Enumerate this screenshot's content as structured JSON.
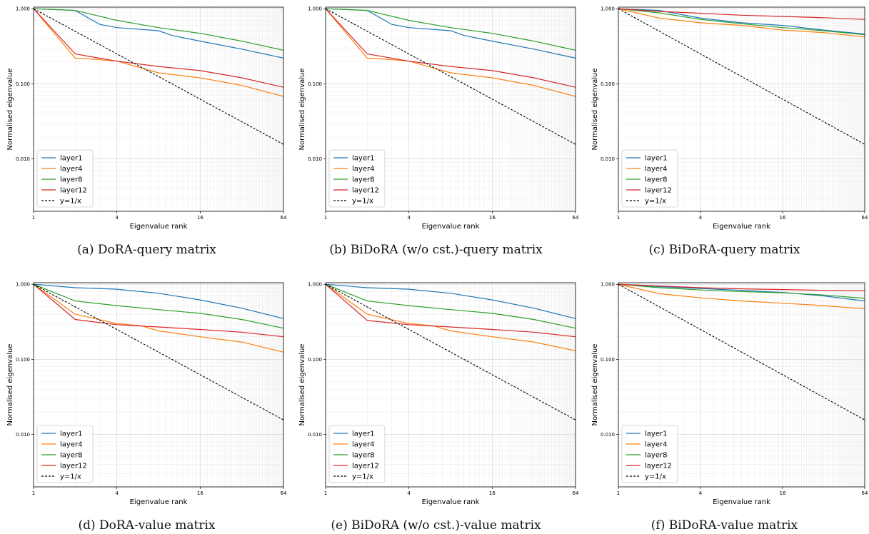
{
  "figure": {
    "captions": [
      "(a)  DoRA-query matrix",
      "(b)  BiDoRA (w/o cst.)-query matrix",
      "(c)  BiDoRA-query matrix",
      "(d)  DoRA-value matrix",
      "(e)  BiDoRA (w/o cst.)-value matrix",
      "(f)  BiDoRA-value matrix"
    ]
  },
  "series_colors": {
    "layer1": "#1f77b4",
    "layer4": "#ff7f0e",
    "layer8": "#2ca02c",
    "layer12": "#d62728",
    "reference": "#000000"
  },
  "chart_data": [
    {
      "type": "line",
      "title": "",
      "xlabel": "Eigenvalue rank",
      "ylabel": "Normalised eigenvalue",
      "xscale": "log2",
      "yscale": "log10",
      "xlim": [
        1,
        64
      ],
      "ylim": [
        0.002,
        1.05
      ],
      "xticks": [
        1,
        4,
        16,
        64
      ],
      "xtick_labels": [
        "1",
        "4",
        "16",
        "64"
      ],
      "yticks": [
        1,
        0.1,
        0.01
      ],
      "ytick_labels": [
        "1.000",
        "0.100",
        "0.010"
      ],
      "grid": true,
      "legend_position": "lower-left",
      "series": [
        {
          "name": "layer1",
          "x": [
            1,
            2,
            3,
            4,
            8,
            10,
            16,
            32,
            64
          ],
          "y": [
            1.0,
            0.95,
            0.62,
            0.56,
            0.51,
            0.44,
            0.37,
            0.29,
            0.22
          ]
        },
        {
          "name": "layer4",
          "x": [
            1,
            2,
            3,
            4,
            8,
            16,
            32,
            64
          ],
          "y": [
            1.0,
            0.22,
            0.21,
            0.2,
            0.14,
            0.12,
            0.095,
            0.068
          ]
        },
        {
          "name": "layer8",
          "x": [
            1,
            2,
            4,
            8,
            16,
            32,
            64
          ],
          "y": [
            1.0,
            0.95,
            0.7,
            0.56,
            0.47,
            0.37,
            0.28
          ]
        },
        {
          "name": "layer12",
          "x": [
            1,
            2,
            4,
            8,
            16,
            32,
            64
          ],
          "y": [
            1.0,
            0.25,
            0.2,
            0.17,
            0.15,
            0.12,
            0.09
          ]
        },
        {
          "name": "y=1/x",
          "x": [
            1,
            64
          ],
          "y": [
            1.0,
            0.0156
          ],
          "dashed": true
        }
      ]
    },
    {
      "type": "line",
      "title": "",
      "xlabel": "Eigenvalue rank",
      "ylabel": "Normalised eigenvalue",
      "xscale": "log2",
      "yscale": "log10",
      "xlim": [
        1,
        64
      ],
      "ylim": [
        0.002,
        1.05
      ],
      "xticks": [
        1,
        4,
        16,
        64
      ],
      "xtick_labels": [
        "1",
        "4",
        "16",
        "64"
      ],
      "yticks": [
        1,
        0.1,
        0.01
      ],
      "ytick_labels": [
        "1.000",
        "0.100",
        "0.010"
      ],
      "grid": true,
      "legend_position": "lower-left",
      "series": [
        {
          "name": "layer1",
          "x": [
            1,
            2,
            3,
            4,
            8,
            10,
            16,
            32,
            64
          ],
          "y": [
            1.0,
            0.95,
            0.62,
            0.56,
            0.51,
            0.44,
            0.37,
            0.29,
            0.22
          ]
        },
        {
          "name": "layer4",
          "x": [
            1,
            2,
            3,
            4,
            8,
            16,
            32,
            64
          ],
          "y": [
            1.0,
            0.22,
            0.21,
            0.2,
            0.14,
            0.12,
            0.095,
            0.068
          ]
        },
        {
          "name": "layer8",
          "x": [
            1,
            2,
            4,
            8,
            16,
            32,
            64
          ],
          "y": [
            1.0,
            0.95,
            0.7,
            0.56,
            0.47,
            0.37,
            0.28
          ]
        },
        {
          "name": "layer12",
          "x": [
            1,
            2,
            4,
            8,
            16,
            32,
            64
          ],
          "y": [
            1.0,
            0.25,
            0.2,
            0.17,
            0.15,
            0.12,
            0.09
          ]
        },
        {
          "name": "y=1/x",
          "x": [
            1,
            64
          ],
          "y": [
            1.0,
            0.0156
          ],
          "dashed": true
        }
      ]
    },
    {
      "type": "line",
      "title": "",
      "xlabel": "Eigenvalue rank",
      "ylabel": "Normalised eigenvalue",
      "xscale": "log2",
      "yscale": "log10",
      "xlim": [
        1,
        64
      ],
      "ylim": [
        0.002,
        1.05
      ],
      "xticks": [
        1,
        4,
        16,
        64
      ],
      "xtick_labels": [
        "1",
        "4",
        "16",
        "64"
      ],
      "yticks": [
        1,
        0.1,
        0.01
      ],
      "ytick_labels": [
        "1.000",
        "0.100",
        "0.010"
      ],
      "grid": true,
      "legend_position": "lower-left",
      "series": [
        {
          "name": "layer1",
          "x": [
            1,
            2,
            4,
            8,
            16,
            32,
            64
          ],
          "y": [
            1.0,
            0.95,
            0.75,
            0.65,
            0.6,
            0.52,
            0.46
          ]
        },
        {
          "name": "layer4",
          "x": [
            1,
            2,
            4,
            8,
            16,
            32,
            64
          ],
          "y": [
            1.0,
            0.75,
            0.65,
            0.6,
            0.52,
            0.48,
            0.42
          ]
        },
        {
          "name": "layer8",
          "x": [
            1,
            2,
            4,
            8,
            16,
            32,
            64
          ],
          "y": [
            1.0,
            0.88,
            0.72,
            0.63,
            0.56,
            0.51,
            0.45
          ]
        },
        {
          "name": "layer12",
          "x": [
            1,
            2,
            4,
            8,
            16,
            32,
            64
          ],
          "y": [
            1.0,
            0.92,
            0.87,
            0.82,
            0.79,
            0.76,
            0.72
          ]
        },
        {
          "name": "y=1/x",
          "x": [
            1,
            64
          ],
          "y": [
            1.0,
            0.0156
          ],
          "dashed": true
        }
      ]
    },
    {
      "type": "line",
      "title": "",
      "xlabel": "Eigenvalue rank",
      "ylabel": "Normalised eigenvalue",
      "xscale": "log2",
      "yscale": "log10",
      "xlim": [
        1,
        64
      ],
      "ylim": [
        0.002,
        1.05
      ],
      "xticks": [
        1,
        4,
        16,
        64
      ],
      "xtick_labels": [
        "1",
        "4",
        "16",
        "64"
      ],
      "yticks": [
        1,
        0.1,
        0.01
      ],
      "ytick_labels": [
        "1.000",
        "0.100",
        "0.010"
      ],
      "grid": true,
      "legend_position": "lower-left",
      "series": [
        {
          "name": "layer1",
          "x": [
            1,
            2,
            4,
            8,
            16,
            32,
            64
          ],
          "y": [
            1.0,
            0.9,
            0.86,
            0.76,
            0.62,
            0.48,
            0.35
          ]
        },
        {
          "name": "layer4",
          "x": [
            1,
            2,
            4,
            6,
            8,
            16,
            32,
            64
          ],
          "y": [
            1.0,
            0.4,
            0.3,
            0.28,
            0.24,
            0.2,
            0.17,
            0.125
          ]
        },
        {
          "name": "layer8",
          "x": [
            1,
            2,
            4,
            8,
            16,
            32,
            64
          ],
          "y": [
            1.0,
            0.6,
            0.52,
            0.46,
            0.41,
            0.34,
            0.26
          ]
        },
        {
          "name": "layer12",
          "x": [
            1,
            2,
            4,
            8,
            16,
            32,
            64
          ],
          "y": [
            1.0,
            0.34,
            0.29,
            0.27,
            0.25,
            0.23,
            0.2
          ]
        },
        {
          "name": "y=1/x",
          "x": [
            1,
            64
          ],
          "y": [
            1.0,
            0.0156
          ],
          "dashed": true
        }
      ]
    },
    {
      "type": "line",
      "title": "",
      "xlabel": "Eigenvalue rank",
      "ylabel": "Normalised eigenvalue",
      "xscale": "log2",
      "yscale": "log10",
      "xlim": [
        1,
        64
      ],
      "ylim": [
        0.002,
        1.05
      ],
      "xticks": [
        1,
        4,
        16,
        64
      ],
      "xtick_labels": [
        "1",
        "4",
        "16",
        "64"
      ],
      "yticks": [
        1,
        0.1,
        0.01
      ],
      "ytick_labels": [
        "1.000",
        "0.100",
        "0.010"
      ],
      "grid": true,
      "legend_position": "lower-left",
      "series": [
        {
          "name": "layer1",
          "x": [
            1,
            2,
            4,
            8,
            16,
            32,
            64
          ],
          "y": [
            1.0,
            0.9,
            0.86,
            0.76,
            0.62,
            0.48,
            0.35
          ]
        },
        {
          "name": "layer4",
          "x": [
            1,
            2,
            4,
            6,
            8,
            16,
            32,
            64
          ],
          "y": [
            1.0,
            0.4,
            0.3,
            0.28,
            0.24,
            0.2,
            0.17,
            0.13
          ]
        },
        {
          "name": "layer8",
          "x": [
            1,
            2,
            4,
            8,
            16,
            32,
            64
          ],
          "y": [
            1.0,
            0.6,
            0.52,
            0.46,
            0.41,
            0.34,
            0.26
          ]
        },
        {
          "name": "layer12",
          "x": [
            1,
            2,
            4,
            8,
            16,
            32,
            64
          ],
          "y": [
            1.0,
            0.33,
            0.29,
            0.27,
            0.25,
            0.23,
            0.2
          ]
        },
        {
          "name": "y=1/x",
          "x": [
            1,
            64
          ],
          "y": [
            1.0,
            0.0156
          ],
          "dashed": true
        }
      ]
    },
    {
      "type": "line",
      "title": "",
      "xlabel": "Eigenvalue rank",
      "ylabel": "Normalised eigenvalue",
      "xscale": "log2",
      "yscale": "log10",
      "xlim": [
        1,
        64
      ],
      "ylim": [
        0.002,
        1.05
      ],
      "xticks": [
        1,
        4,
        16,
        64
      ],
      "xtick_labels": [
        "1",
        "4",
        "16",
        "64"
      ],
      "yticks": [
        1,
        0.1,
        0.01
      ],
      "ytick_labels": [
        "1.000",
        "0.100",
        "0.010"
      ],
      "grid": true,
      "legend_position": "lower-left",
      "series": [
        {
          "name": "layer1",
          "x": [
            1,
            2,
            4,
            8,
            16,
            32,
            64
          ],
          "y": [
            1.0,
            0.93,
            0.88,
            0.83,
            0.78,
            0.7,
            0.6
          ]
        },
        {
          "name": "layer4",
          "x": [
            1,
            2,
            4,
            8,
            16,
            32,
            64
          ],
          "y": [
            1.0,
            0.75,
            0.66,
            0.6,
            0.56,
            0.52,
            0.47
          ]
        },
        {
          "name": "layer8",
          "x": [
            1,
            2,
            4,
            8,
            16,
            32,
            64
          ],
          "y": [
            1.0,
            0.9,
            0.84,
            0.8,
            0.77,
            0.72,
            0.65
          ]
        },
        {
          "name": "layer12",
          "x": [
            1,
            2,
            4,
            8,
            16,
            32,
            64
          ],
          "y": [
            1.0,
            0.95,
            0.9,
            0.87,
            0.85,
            0.83,
            0.82
          ]
        },
        {
          "name": "y=1/x",
          "x": [
            1,
            64
          ],
          "y": [
            1.0,
            0.0156
          ],
          "dashed": true
        }
      ]
    }
  ]
}
